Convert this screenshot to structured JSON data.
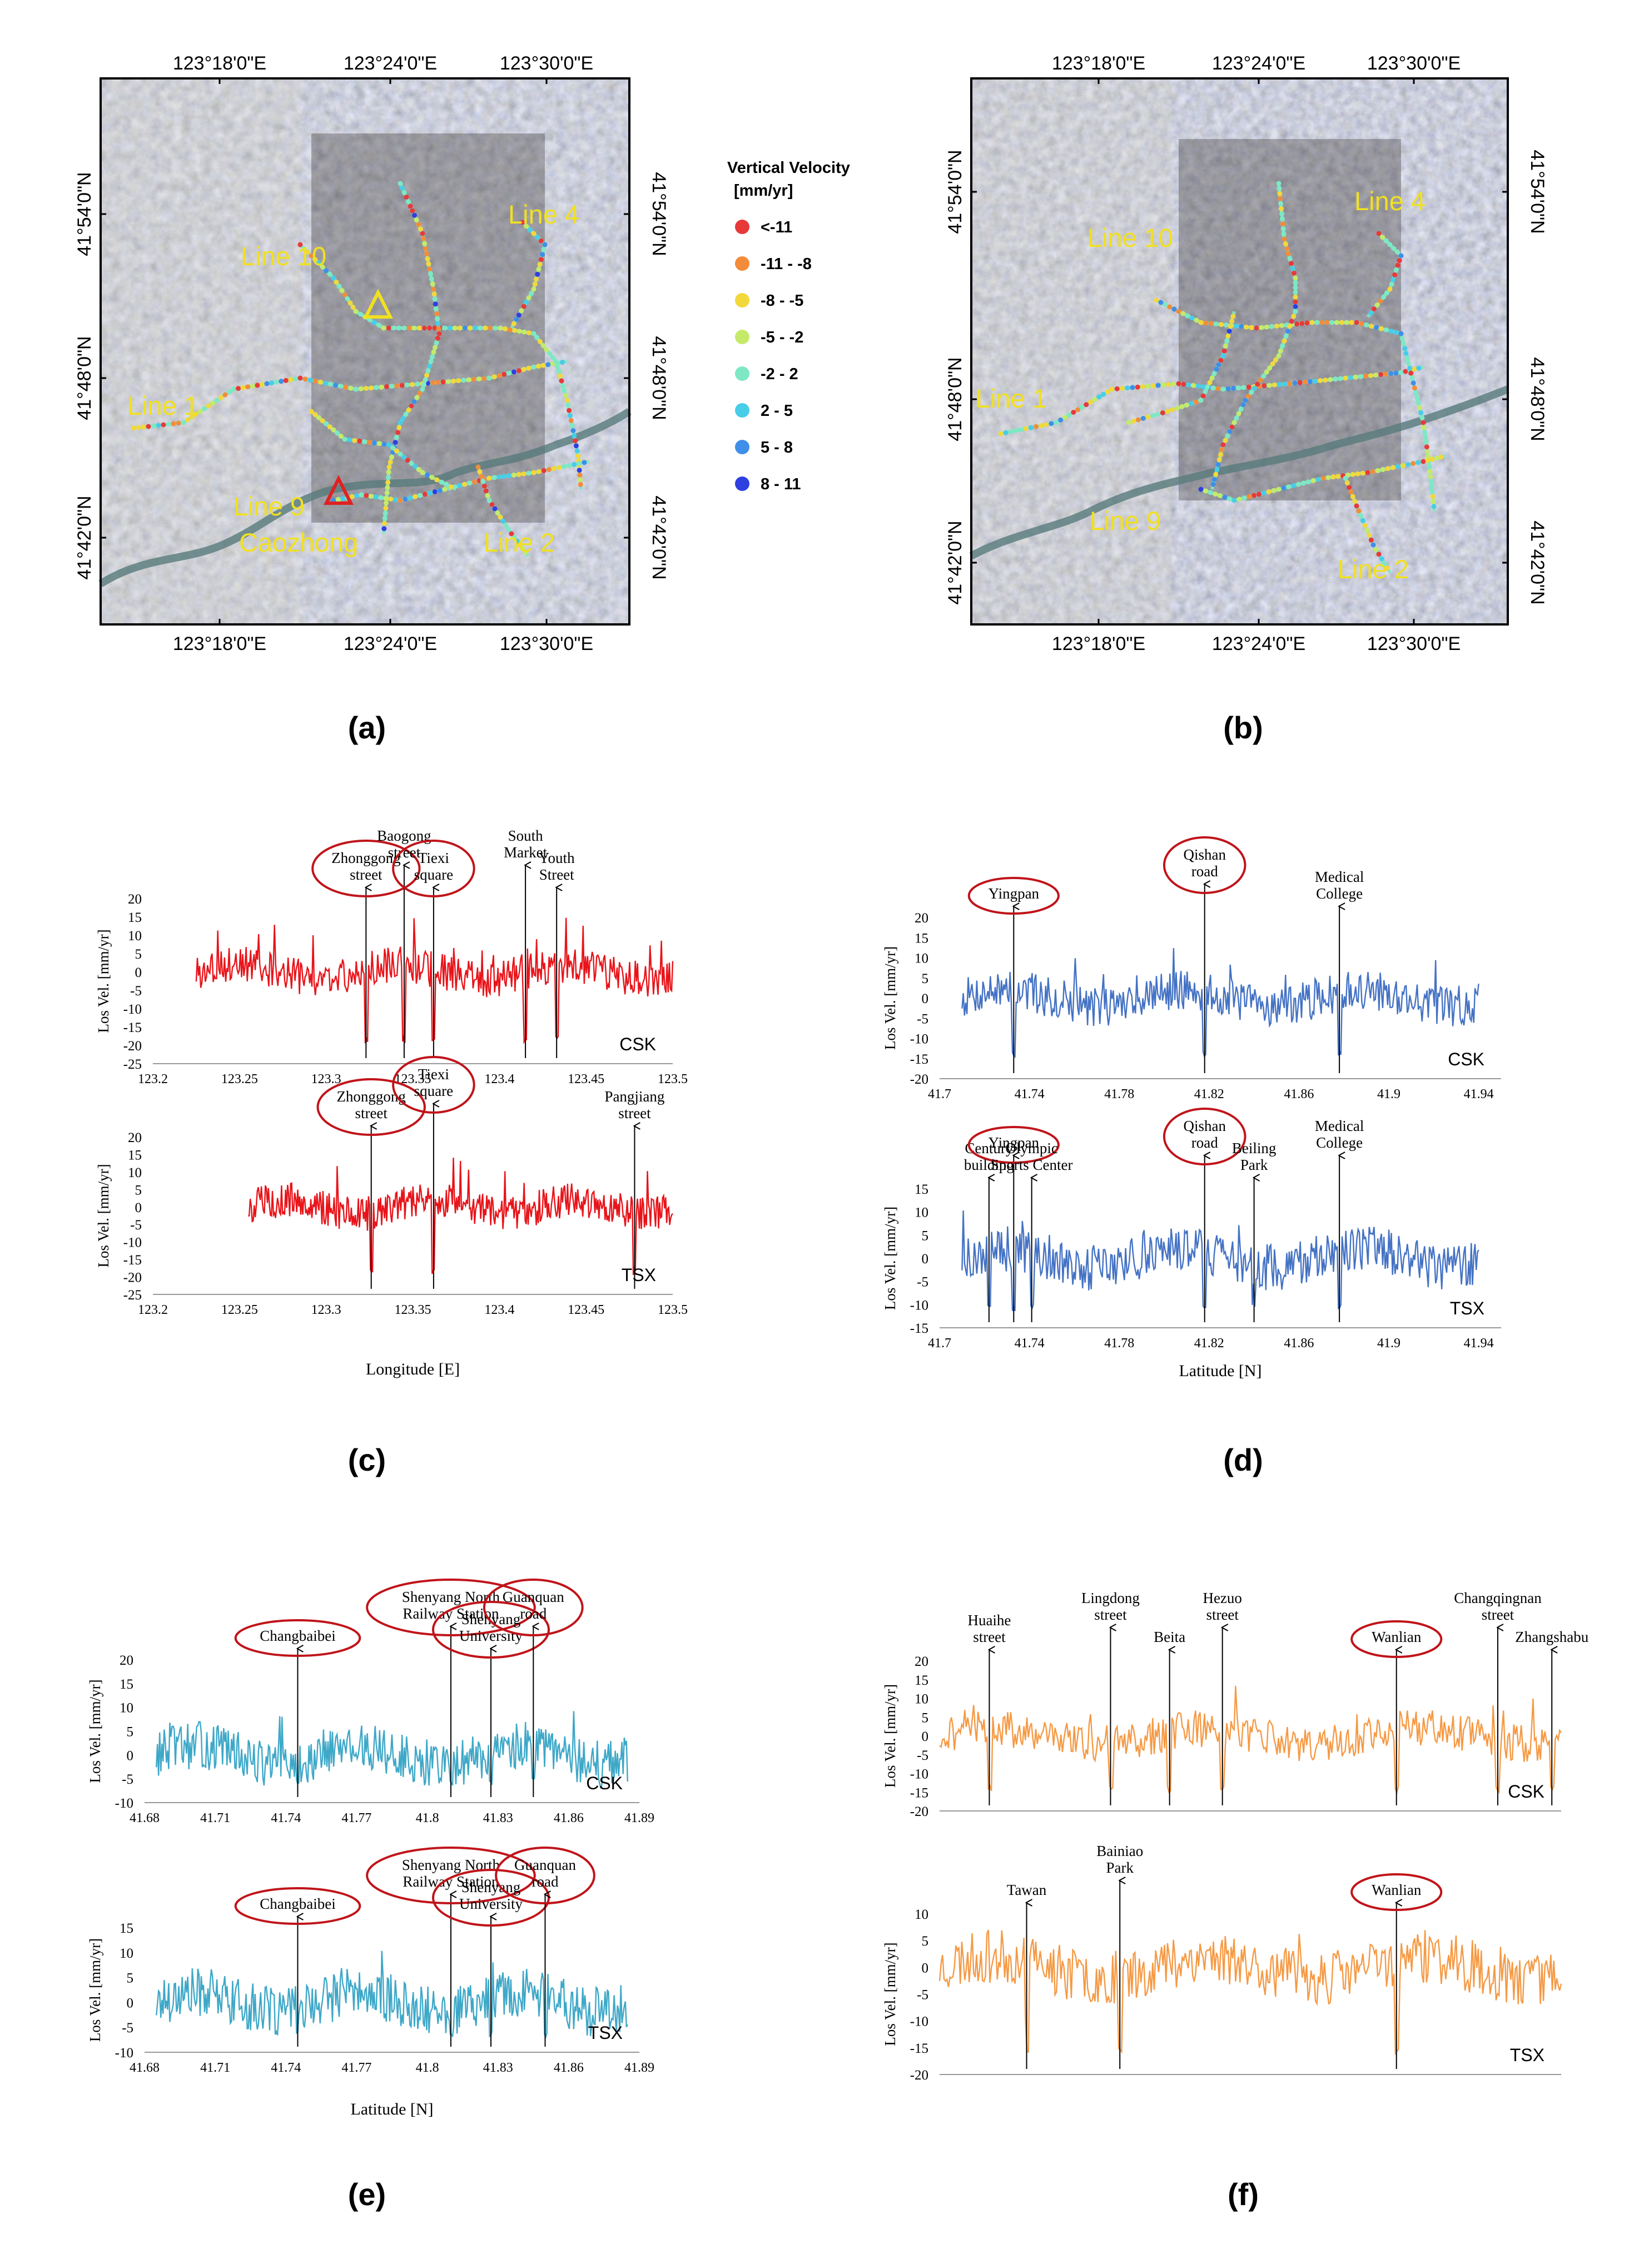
{
  "maps": {
    "a": {
      "letter": "(a)",
      "lon_ticks": [
        "123°18'0\"E",
        "123°24'0\"E",
        "123°30'0\"E"
      ],
      "lat_ticks": [
        "41°54'0\"N",
        "41°48'0\"N",
        "41°42'0\"N"
      ],
      "line_labels": [
        "Line 10",
        "Line 4",
        "Line 1",
        "Line 9",
        "Caozhong",
        "Line 2"
      ],
      "legend": {
        "title_line1": "Vertical Velocity",
        "title_line2": "[mm/yr]",
        "items": [
          {
            "label": "<-11",
            "color": "#e8393a"
          },
          {
            "label": "-11 - -8",
            "color": "#f28c3b"
          },
          {
            "label": "-8 - -5",
            "color": "#f3d83b"
          },
          {
            "label": "-5 - -2",
            "color": "#c5ea6a"
          },
          {
            "label": "-2 - 2",
            "color": "#7ee8c4"
          },
          {
            "label": "2 - 5",
            "color": "#47cde8"
          },
          {
            "label": "5 - 8",
            "color": "#3f8ee8"
          },
          {
            "label": "8 - 11",
            "color": "#2f3fe0"
          }
        ]
      }
    },
    "b": {
      "letter": "(b)",
      "lon_ticks": [
        "123°18'0\"E",
        "123°24'0\"E",
        "123°30'0\"E"
      ],
      "lat_ticks": [
        "41°54'0\"N",
        "41°48'0\"N",
        "41°42'0\"N"
      ],
      "line_labels": [
        "Line 10",
        "Line 4",
        "Line 1",
        "Line 9",
        "Line 2"
      ]
    }
  },
  "chart_data": [
    {
      "id": "c",
      "type": "line",
      "letter": "(c)",
      "color": "#e8141a",
      "xlabel": "Longitude [E]",
      "panels": [
        {
          "sensor": "CSK",
          "ylabel": "Los Vel. [mm/yr]",
          "ylim": [
            -25,
            20
          ],
          "yticks": [
            "20",
            "15",
            "10",
            "5",
            "0",
            "-5",
            "-10",
            "-15",
            "-20",
            "-25"
          ],
          "xlim": [
            123.2,
            123.5
          ],
          "xticks": [
            "123.2",
            "123.25",
            "123.3",
            "123.35",
            "123.4",
            "123.45",
            "123.5"
          ],
          "xrange": [
            123.225,
            123.5
          ],
          "annotations": [
            {
              "label": [
                "Zhonggong",
                "street"
              ],
              "circled": true,
              "x": 123.323
            },
            {
              "label": [
                "Baogong",
                "street"
              ],
              "circled": false,
              "x": 123.345
            },
            {
              "label": [
                "Tiexi",
                "square"
              ],
              "circled": true,
              "x": 123.362
            },
            {
              "label": [
                "South",
                "Market"
              ],
              "circled": false,
              "x": 123.415
            },
            {
              "label": [
                "Youth",
                "Street"
              ],
              "circled": false,
              "x": 123.433
            }
          ]
        },
        {
          "sensor": "TSX",
          "ylabel": "Los Vel. [mm/yr]",
          "ylim": [
            -25,
            20
          ],
          "yticks": [
            "20",
            "15",
            "10",
            "5",
            "0",
            "-5",
            "-10",
            "-15",
            "-20",
            "-25"
          ],
          "xlim": [
            123.2,
            123.5
          ],
          "xticks": [
            "123.2",
            "123.25",
            "123.3",
            "123.35",
            "123.4",
            "123.45",
            "123.5"
          ],
          "xrange": [
            123.255,
            123.5
          ],
          "annotations": [
            {
              "label": [
                "Zhonggong",
                "street"
              ],
              "circled": true,
              "x": 123.326
            },
            {
              "label": [
                "Tiexi",
                "square"
              ],
              "circled": true,
              "x": 123.362
            },
            {
              "label": [
                "Pangjiang",
                "street"
              ],
              "circled": false,
              "x": 123.478
            }
          ]
        }
      ]
    },
    {
      "id": "d",
      "type": "line",
      "letter": "(d)",
      "color": "#4472c4",
      "xlabel": "Latitude [N]",
      "panels": [
        {
          "sensor": "CSK",
          "ylabel": "Los Vel. [mm/yr]",
          "ylim": [
            -20,
            20
          ],
          "yticks": [
            "20",
            "15",
            "10",
            "5",
            "0",
            "-5",
            "-10",
            "-15",
            "-20"
          ],
          "xlim": [
            41.7,
            41.95
          ],
          "xticks": [
            "41.7",
            "41.74",
            "41.78",
            "41.82",
            "41.86",
            "41.9",
            "41.94"
          ],
          "xrange": [
            41.71,
            41.94
          ],
          "annotations": [
            {
              "label": [
                "Yingpan"
              ],
              "circled": true,
              "x": 41.733
            },
            {
              "label": [
                "Qishan",
                "road"
              ],
              "circled": true,
              "x": 41.818
            },
            {
              "label": [
                "Medical",
                "College"
              ],
              "circled": false,
              "x": 41.878
            }
          ]
        },
        {
          "sensor": "TSX",
          "ylabel": "Los Vel. [mm/yr]",
          "ylim": [
            -15,
            15
          ],
          "yticks": [
            "15",
            "10",
            "5",
            "0",
            "-5",
            "-10",
            "-15"
          ],
          "xlim": [
            41.7,
            41.95
          ],
          "xticks": [
            "41.7",
            "41.74",
            "41.78",
            "41.82",
            "41.86",
            "41.9",
            "41.94"
          ],
          "xrange": [
            41.71,
            41.94
          ],
          "annotations": [
            {
              "label": [
                "Century",
                "building"
              ],
              "circled": false,
              "x": 41.722
            },
            {
              "label": [
                "Yingpan"
              ],
              "circled": true,
              "x": 41.733
            },
            {
              "label": [
                "Olympic",
                "Sports  Center"
              ],
              "circled": false,
              "x": 41.741
            },
            {
              "label": [
                "Qishan",
                "road"
              ],
              "circled": true,
              "x": 41.818
            },
            {
              "label": [
                "Beiling",
                "Park"
              ],
              "circled": false,
              "x": 41.84
            },
            {
              "label": [
                "Medical",
                "College"
              ],
              "circled": false,
              "x": 41.878
            }
          ]
        }
      ]
    },
    {
      "id": "e",
      "type": "line",
      "letter": "(e)",
      "color": "#3ea8c8",
      "xlabel": "Latitude [N]",
      "panels": [
        {
          "sensor": "CSK",
          "ylabel": "Los Vel. [mm/yr]",
          "ylim": [
            -10,
            20
          ],
          "yticks": [
            "20",
            "15",
            "10",
            "5",
            "0",
            "-5",
            "-10"
          ],
          "xlim": [
            41.68,
            41.89
          ],
          "xticks": [
            "41.68",
            "41.71",
            "41.74",
            "41.77",
            "41.8",
            "41.83",
            "41.86",
            "41.89"
          ],
          "xrange": [
            41.685,
            41.885
          ],
          "annotations": [
            {
              "label": [
                "Changbaibei"
              ],
              "circled": true,
              "x": 41.745
            },
            {
              "label": [
                "Shenyang  North",
                "Railway  Station"
              ],
              "circled": true,
              "x": 41.81
            },
            {
              "label": [
                "Shenyang",
                "University"
              ],
              "circled": true,
              "x": 41.827
            },
            {
              "label": [
                "Guanquan",
                "road"
              ],
              "circled": true,
              "x": 41.845
            }
          ]
        },
        {
          "sensor": "TSX",
          "ylabel": "Los Vel. [mm/yr]",
          "ylim": [
            -10,
            15
          ],
          "yticks": [
            "15",
            "10",
            "5",
            "0",
            "-5",
            "-10"
          ],
          "xlim": [
            41.68,
            41.89
          ],
          "xticks": [
            "41.68",
            "41.71",
            "41.74",
            "41.77",
            "41.8",
            "41.83",
            "41.86",
            "41.89"
          ],
          "xrange": [
            41.685,
            41.885
          ],
          "annotations": [
            {
              "label": [
                "Changbaibei"
              ],
              "circled": true,
              "x": 41.745
            },
            {
              "label": [
                "Shenyang  North",
                "Railway  Station"
              ],
              "circled": true,
              "x": 41.81
            },
            {
              "label": [
                "Shenyang",
                "University"
              ],
              "circled": true,
              "x": 41.827
            },
            {
              "label": [
                "Guanquan",
                "road"
              ],
              "circled": true,
              "x": 41.85
            }
          ]
        }
      ]
    },
    {
      "id": "f",
      "type": "line",
      "letter": "(f)",
      "color": "#f59a45",
      "xlabel": "",
      "panels": [
        {
          "sensor": "CSK",
          "ylabel": "Los Vel. [mm/yr]",
          "ylim": [
            -20,
            20
          ],
          "yticks": [
            "20",
            "15",
            "10",
            "5",
            "0",
            "-5",
            "-10",
            "-15",
            "-20"
          ],
          "xlim": [
            0,
            1
          ],
          "xticks": [],
          "xrange": [
            0,
            1
          ],
          "annotations": [
            {
              "label": [
                "Huaihe",
                "street"
              ],
              "circled": false,
              "x": 0.08
            },
            {
              "label": [
                "Lingdong",
                "street"
              ],
              "circled": false,
              "x": 0.275
            },
            {
              "label": [
                "Beita"
              ],
              "circled": false,
              "x": 0.37
            },
            {
              "label": [
                "Hezuo",
                "street"
              ],
              "circled": false,
              "x": 0.455
            },
            {
              "label": [
                "Wanlian"
              ],
              "circled": true,
              "x": 0.735
            },
            {
              "label": [
                "Changqingnan",
                "street"
              ],
              "circled": false,
              "x": 0.898
            },
            {
              "label": [
                "Zhangshabu"
              ],
              "circled": false,
              "x": 0.985
            }
          ]
        },
        {
          "sensor": "TSX",
          "ylabel": "Los Vel. [mm/yr]",
          "ylim": [
            -20,
            10
          ],
          "yticks": [
            "10",
            "5",
            "0",
            "-5",
            "-10",
            "-15",
            "-20"
          ],
          "xlim": [
            0,
            1
          ],
          "xticks": [],
          "xrange": [
            0,
            1
          ],
          "annotations": [
            {
              "label": [
                "Tawan"
              ],
              "circled": false,
              "x": 0.14
            },
            {
              "label": [
                "Bainiao",
                "Park"
              ],
              "circled": false,
              "x": 0.29
            },
            {
              "label": [
                "Wanlian"
              ],
              "circled": true,
              "x": 0.735
            }
          ]
        }
      ]
    }
  ]
}
